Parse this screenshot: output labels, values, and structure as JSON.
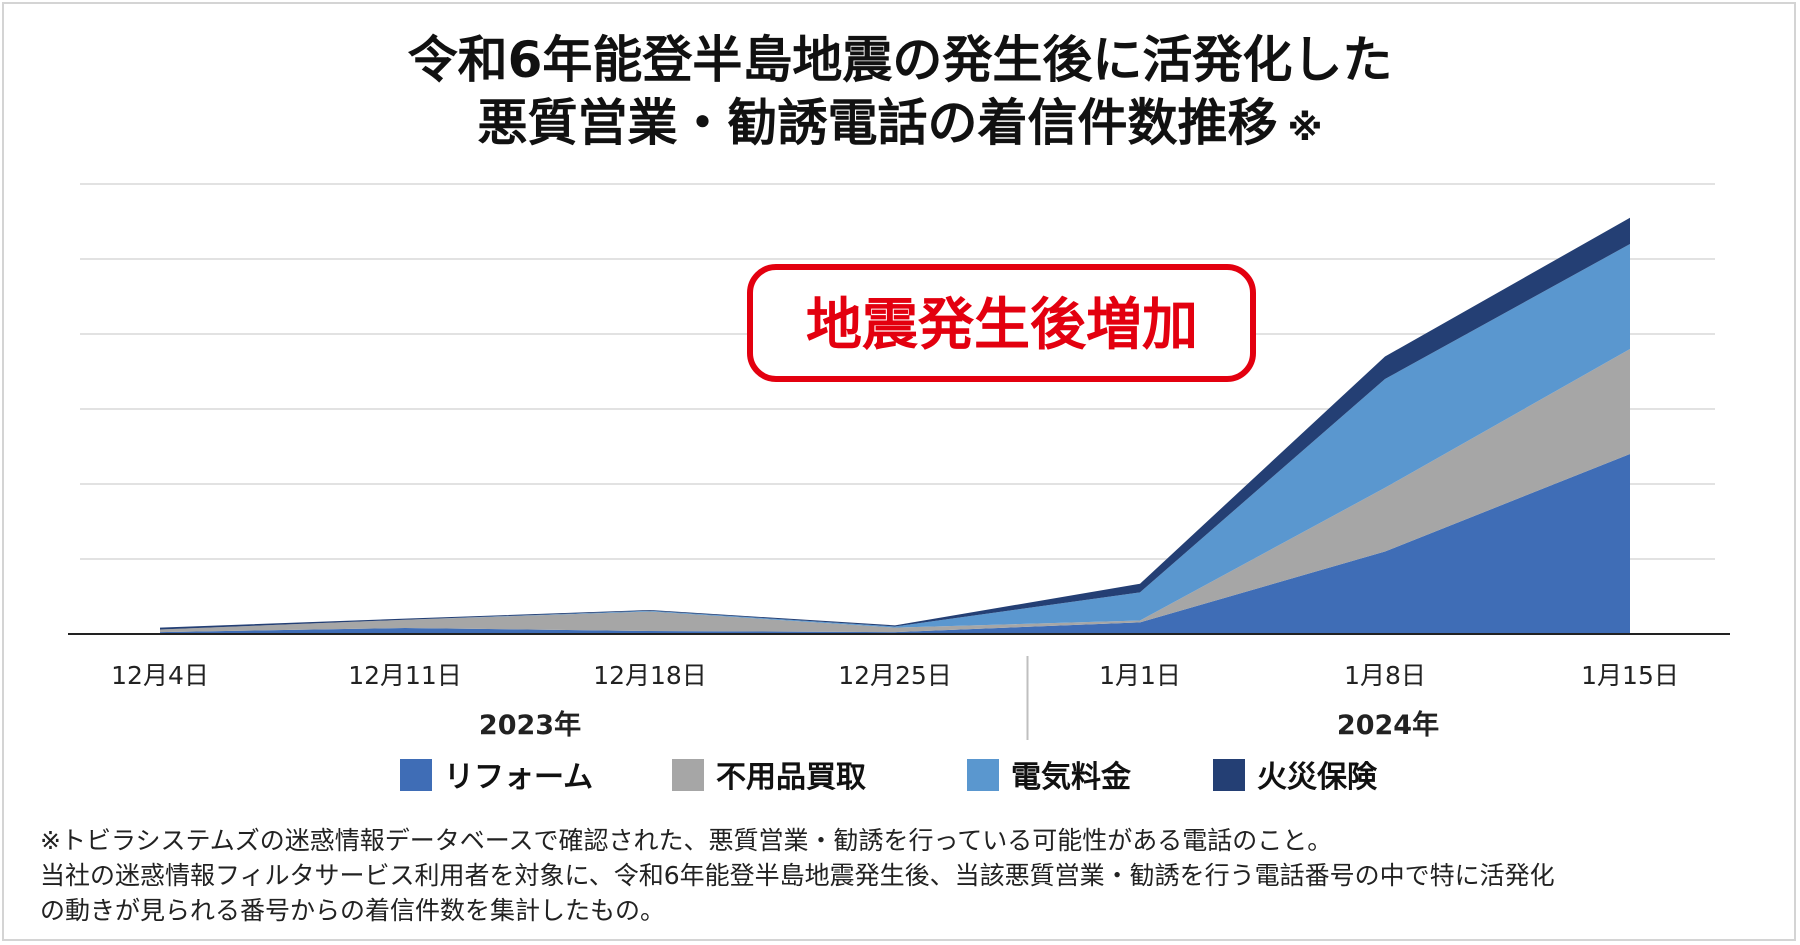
{
  "title": {
    "line1": "令和6年能登半島地震の発生後に活発化した",
    "line2": "悪質営業・勧誘電話の着信件数推移",
    "mark": "※"
  },
  "colors": {
    "reform": "#3f6db6",
    "fuyouhin": "#a6a6a6",
    "denki": "#5a97cf",
    "kasai": "#243f74",
    "highlight": "#e3000f"
  },
  "chart_data": {
    "type": "area",
    "stacked": true,
    "x": [
      "12月4日",
      "12月11日",
      "12月18日",
      "12月25日",
      "1月1日",
      "1月8日",
      "1月15日"
    ],
    "year_groups": [
      {
        "label": "2023年",
        "categories": [
          "12月4日",
          "12月11日",
          "12月18日",
          "12月25日"
        ]
      },
      {
        "label": "2024年",
        "categories": [
          "1月1日",
          "1月8日",
          "1月15日"
        ]
      }
    ],
    "series": [
      {
        "name": "リフォーム",
        "color": "#3f6db6",
        "values": [
          0.5,
          1.6,
          0.8,
          0.5,
          3.1,
          22.0,
          48.0
        ]
      },
      {
        "name": "不用品買取",
        "color": "#a6a6a6",
        "values": [
          0.7,
          2.2,
          5.2,
          1.2,
          0.5,
          17.0,
          28.0
        ]
      },
      {
        "name": "電気料金",
        "color": "#5a97cf",
        "values": [
          0.0,
          0.0,
          0.2,
          0.3,
          7.5,
          29.0,
          28.0
        ]
      },
      {
        "name": "火災保険",
        "color": "#243f74",
        "values": [
          0.5,
          0.3,
          0.2,
          0.3,
          2.3,
          6.0,
          7.0
        ]
      }
    ],
    "ylim": [
      0,
      120
    ],
    "y_axis_labels": false,
    "grid": true,
    "legend_position": "bottom",
    "annotation": "地震発生後増加"
  },
  "notes": [
    "※トビラシステムズの迷惑情報データベースで確認された、悪質営業・勧誘を行っている可能性がある電話のこと。",
    "当社の迷惑情報フィルタサービス利用者を対象に、令和6年能登半島地震発生後、当該悪質営業・勧誘を行う電話番号の中で特に活発化",
    "の動きが見られる番号からの着信件数を集計したもの。"
  ]
}
